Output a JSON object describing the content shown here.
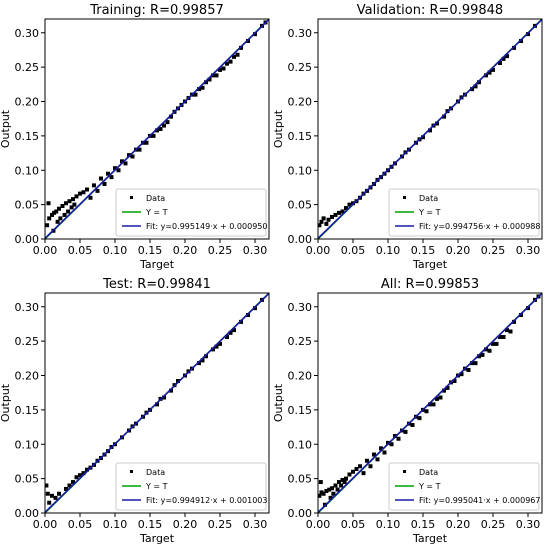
{
  "figure": {
    "xlabel": "Target",
    "ylabel": "Output"
  },
  "chart_data": [
    {
      "type": "scatter",
      "title": "Training: R=0.99857",
      "xlabel": "Target",
      "ylabel": "Output",
      "xlim": [
        0,
        0.32
      ],
      "ylim": [
        0,
        0.32
      ],
      "xticks": [
        "0.00",
        "0.05",
        "0.10",
        "0.15",
        "0.20",
        "0.25",
        "0.30"
      ],
      "yticks": [
        "0.00",
        "0.05",
        "0.10",
        "0.15",
        "0.20",
        "0.25",
        "0.30"
      ],
      "legend": {
        "position": "bottom-right",
        "entries": [
          "Data",
          "Y = T",
          "Fit: y=0.995149·x + 0.000950"
        ]
      },
      "fit": {
        "slope": 0.995149,
        "intercept": 0.00095
      },
      "series": [
        {
          "name": "Data",
          "x": [
            0.003,
            0.006,
            0.01,
            0.013,
            0.016,
            0.02,
            0.025,
            0.03,
            0.035,
            0.04,
            0.045,
            0.05,
            0.055,
            0.06,
            0.07,
            0.08,
            0.09,
            0.1,
            0.11,
            0.12,
            0.13,
            0.14,
            0.15,
            0.16,
            0.17,
            0.18,
            0.19,
            0.2,
            0.21,
            0.22,
            0.23,
            0.24,
            0.25,
            0.26,
            0.27,
            0.28,
            0.29,
            0.3,
            0.31,
            0.315,
            0.005,
            0.012,
            0.018,
            0.022,
            0.028,
            0.033,
            0.038,
            0.042,
            0.065,
            0.075,
            0.085,
            0.095,
            0.105,
            0.115,
            0.125,
            0.135,
            0.145,
            0.155,
            0.165,
            0.175,
            0.185,
            0.195,
            0.205,
            0.215,
            0.225,
            0.235,
            0.245,
            0.255,
            0.265,
            0.275
          ],
          "y": [
            0.02,
            0.03,
            0.035,
            0.038,
            0.04,
            0.044,
            0.048,
            0.052,
            0.055,
            0.058,
            0.062,
            0.066,
            0.068,
            0.072,
            0.078,
            0.088,
            0.095,
            0.103,
            0.113,
            0.122,
            0.13,
            0.14,
            0.15,
            0.158,
            0.165,
            0.178,
            0.19,
            0.2,
            0.21,
            0.218,
            0.228,
            0.238,
            0.246,
            0.255,
            0.265,
            0.278,
            0.288,
            0.298,
            0.31,
            0.315,
            0.052,
            0.012,
            0.025,
            0.03,
            0.035,
            0.04,
            0.046,
            0.05,
            0.06,
            0.07,
            0.08,
            0.09,
            0.1,
            0.11,
            0.12,
            0.13,
            0.14,
            0.15,
            0.16,
            0.17,
            0.185,
            0.195,
            0.205,
            0.21,
            0.22,
            0.232,
            0.238,
            0.248,
            0.258,
            0.268
          ]
        }
      ]
    },
    {
      "type": "scatter",
      "title": "Validation: R=0.99848",
      "xlabel": "Target",
      "ylabel": "Output",
      "xlim": [
        0,
        0.32
      ],
      "ylim": [
        0,
        0.32
      ],
      "xticks": [
        "0.00",
        "0.05",
        "0.10",
        "0.15",
        "0.20",
        "0.25",
        "0.30"
      ],
      "yticks": [
        "0.00",
        "0.05",
        "0.10",
        "0.15",
        "0.20",
        "0.25",
        "0.30"
      ],
      "legend": {
        "position": "bottom-right",
        "entries": [
          "Data",
          "Y = T",
          "Fit: y=0.994756·x + 0.000988"
        ]
      },
      "fit": {
        "slope": 0.994756,
        "intercept": 0.000988
      },
      "series": [
        {
          "name": "Data",
          "x": [
            0.002,
            0.005,
            0.008,
            0.012,
            0.015,
            0.02,
            0.025,
            0.03,
            0.04,
            0.05,
            0.06,
            0.07,
            0.08,
            0.09,
            0.1,
            0.11,
            0.12,
            0.13,
            0.14,
            0.15,
            0.16,
            0.17,
            0.18,
            0.19,
            0.2,
            0.21,
            0.22,
            0.23,
            0.24,
            0.25,
            0.26,
            0.27,
            0.28,
            0.29,
            0.3,
            0.31,
            0.035,
            0.045,
            0.055,
            0.065,
            0.075,
            0.085,
            0.095,
            0.105,
            0.125,
            0.145,
            0.165,
            0.185,
            0.205,
            0.225,
            0.245,
            0.265
          ],
          "y": [
            0.02,
            0.025,
            0.03,
            0.022,
            0.028,
            0.032,
            0.035,
            0.038,
            0.045,
            0.052,
            0.06,
            0.07,
            0.08,
            0.09,
            0.1,
            0.11,
            0.12,
            0.13,
            0.14,
            0.148,
            0.158,
            0.168,
            0.178,
            0.19,
            0.2,
            0.21,
            0.218,
            0.228,
            0.238,
            0.246,
            0.256,
            0.266,
            0.278,
            0.288,
            0.298,
            0.31,
            0.04,
            0.05,
            0.055,
            0.066,
            0.075,
            0.086,
            0.095,
            0.105,
            0.126,
            0.145,
            0.165,
            0.186,
            0.206,
            0.222,
            0.242,
            0.262
          ]
        }
      ]
    },
    {
      "type": "scatter",
      "title": "Test: R=0.99841",
      "xlabel": "Target",
      "ylabel": "Output",
      "xlim": [
        0,
        0.32
      ],
      "ylim": [
        0,
        0.32
      ],
      "xticks": [
        "0.00",
        "0.05",
        "0.10",
        "0.15",
        "0.20",
        "0.25",
        "0.30"
      ],
      "yticks": [
        "0.00",
        "0.05",
        "0.10",
        "0.15",
        "0.20",
        "0.25",
        "0.30"
      ],
      "legend": {
        "position": "bottom-right",
        "entries": [
          "Data",
          "Y = T",
          "Fit: y=0.994912·x + 0.001003"
        ]
      },
      "fit": {
        "slope": 0.994912,
        "intercept": 0.001003
      },
      "series": [
        {
          "name": "Data",
          "x": [
            0.002,
            0.004,
            0.006,
            0.01,
            0.015,
            0.02,
            0.03,
            0.04,
            0.05,
            0.06,
            0.07,
            0.08,
            0.09,
            0.1,
            0.11,
            0.12,
            0.13,
            0.14,
            0.15,
            0.16,
            0.17,
            0.18,
            0.19,
            0.2,
            0.21,
            0.22,
            0.23,
            0.24,
            0.25,
            0.26,
            0.27,
            0.28,
            0.29,
            0.3,
            0.31,
            0.035,
            0.045,
            0.055,
            0.065,
            0.075,
            0.085,
            0.095,
            0.125,
            0.145,
            0.165,
            0.185,
            0.205,
            0.225,
            0.245,
            0.265
          ],
          "y": [
            0.04,
            0.028,
            0.015,
            0.025,
            0.022,
            0.028,
            0.035,
            0.045,
            0.055,
            0.063,
            0.07,
            0.08,
            0.09,
            0.1,
            0.11,
            0.12,
            0.13,
            0.14,
            0.15,
            0.158,
            0.168,
            0.178,
            0.192,
            0.2,
            0.21,
            0.218,
            0.228,
            0.238,
            0.246,
            0.256,
            0.266,
            0.278,
            0.288,
            0.298,
            0.31,
            0.04,
            0.052,
            0.058,
            0.066,
            0.076,
            0.085,
            0.096,
            0.126,
            0.146,
            0.166,
            0.186,
            0.206,
            0.222,
            0.242,
            0.262
          ]
        }
      ]
    },
    {
      "type": "scatter",
      "title": "All: R=0.99853",
      "xlabel": "Target",
      "ylabel": "Output",
      "xlim": [
        0,
        0.32
      ],
      "ylim": [
        0,
        0.32
      ],
      "xticks": [
        "0.00",
        "0.05",
        "0.10",
        "0.15",
        "0.20",
        "0.25",
        "0.30"
      ],
      "yticks": [
        "0.00",
        "0.05",
        "0.10",
        "0.15",
        "0.20",
        "0.25",
        "0.30"
      ],
      "legend": {
        "position": "bottom-right",
        "entries": [
          "Data",
          "Y = T",
          "Fit: y=0.995041·x + 0.000967"
        ]
      },
      "fit": {
        "slope": 0.995041,
        "intercept": 0.000967
      },
      "series": [
        {
          "name": "Data",
          "x": [
            0.002,
            0.005,
            0.008,
            0.012,
            0.016,
            0.02,
            0.025,
            0.03,
            0.035,
            0.04,
            0.045,
            0.05,
            0.055,
            0.06,
            0.07,
            0.08,
            0.09,
            0.1,
            0.11,
            0.12,
            0.13,
            0.14,
            0.15,
            0.16,
            0.17,
            0.18,
            0.19,
            0.2,
            0.21,
            0.22,
            0.23,
            0.24,
            0.25,
            0.26,
            0.27,
            0.28,
            0.29,
            0.3,
            0.31,
            0.315,
            0.004,
            0.01,
            0.018,
            0.022,
            0.028,
            0.033,
            0.038,
            0.065,
            0.075,
            0.085,
            0.095,
            0.105,
            0.115,
            0.125,
            0.135,
            0.145,
            0.155,
            0.165,
            0.175,
            0.185,
            0.195,
            0.205,
            0.215,
            0.225,
            0.235,
            0.245,
            0.255,
            0.265,
            0.275
          ],
          "y": [
            0.025,
            0.03,
            0.028,
            0.032,
            0.034,
            0.036,
            0.04,
            0.045,
            0.048,
            0.05,
            0.056,
            0.06,
            0.064,
            0.068,
            0.076,
            0.085,
            0.094,
            0.102,
            0.112,
            0.12,
            0.13,
            0.14,
            0.15,
            0.158,
            0.166,
            0.178,
            0.19,
            0.2,
            0.21,
            0.218,
            0.228,
            0.238,
            0.246,
            0.256,
            0.266,
            0.278,
            0.288,
            0.298,
            0.31,
            0.315,
            0.045,
            0.012,
            0.022,
            0.028,
            0.034,
            0.04,
            0.045,
            0.058,
            0.068,
            0.078,
            0.088,
            0.1,
            0.108,
            0.118,
            0.128,
            0.138,
            0.148,
            0.158,
            0.168,
            0.182,
            0.192,
            0.202,
            0.208,
            0.218,
            0.23,
            0.236,
            0.246,
            0.256,
            0.264
          ]
        }
      ]
    }
  ]
}
